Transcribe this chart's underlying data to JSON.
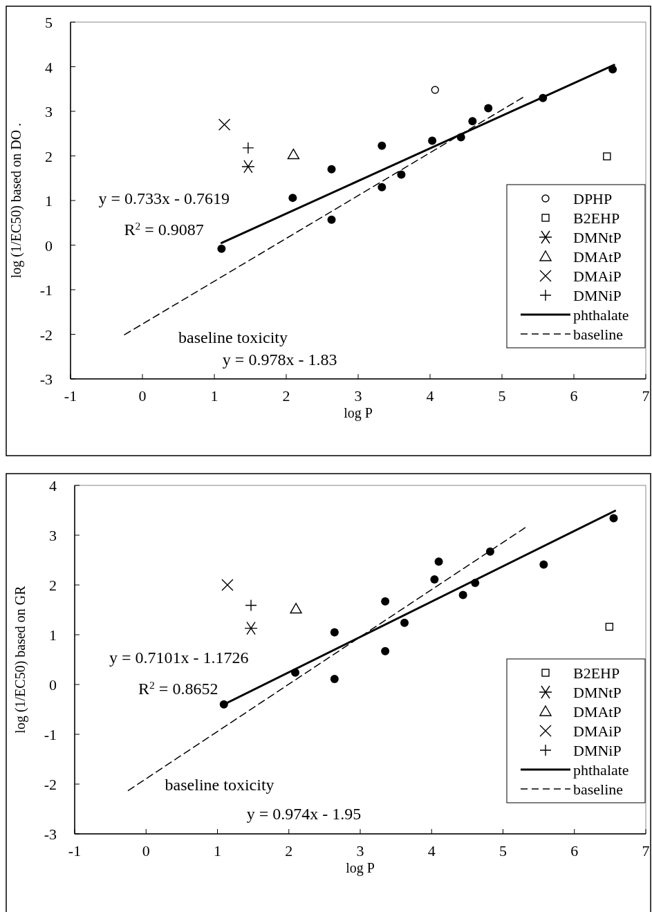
{
  "chart_data": [
    {
      "type": "scatter",
      "xlabel": "log P",
      "ylabel": "log (1/EC50) based on DO .",
      "xlim": [
        -1,
        7
      ],
      "xticks": [
        -1,
        0,
        1,
        2,
        3,
        4,
        5,
        6,
        7
      ],
      "ylim": [
        -3,
        5
      ],
      "yticks": [
        -3,
        -2,
        -1,
        0,
        1,
        2,
        3,
        4,
        5
      ],
      "grid": false,
      "legend": "right",
      "annotations": [
        "y = 0.733x - 0.7619",
        "R$^{2}$ = 0.9087",
        "baseline toxicity",
        "y = 0.978x - 1.83"
      ],
      "series": [
        {
          "color": "#000000",
          "marker": "circle",
          "x": [
            1.1,
            2.09,
            2.63,
            2.63,
            3.33,
            3.33,
            3.6,
            4.03,
            4.43,
            4.59,
            4.81,
            5.57,
            6.54
          ],
          "values": [
            -0.08,
            1.06,
            1.7,
            0.57,
            2.23,
            1.3,
            1.58,
            2.34,
            2.42,
            2.78,
            3.07,
            3.3,
            3.94
          ]
        },
        {
          "name": "DPHP",
          "color": "#000000",
          "marker": "circle-open",
          "x": [
            4.07
          ],
          "values": [
            3.48
          ]
        },
        {
          "name": "B2EHP",
          "color": "#000000",
          "marker": "square",
          "x": [
            6.46
          ],
          "values": [
            1.99
          ]
        },
        {
          "name": "DMNtP",
          "color": "#000000",
          "marker": "cross",
          "x": [
            1.47
          ],
          "values": [
            1.76
          ]
        },
        {
          "name": "DMAtP",
          "color": "#000000",
          "marker": "triangle",
          "x": [
            2.1
          ],
          "values": [
            2.03
          ]
        },
        {
          "name": "DMAiP",
          "color": "#000000",
          "marker": "x",
          "x": [
            1.14
          ],
          "values": [
            2.7
          ]
        },
        {
          "name": "DMNiP",
          "color": "#000000",
          "marker": "plus",
          "x": [
            1.47
          ],
          "values": [
            2.18
          ]
        },
        {
          "name": "phthalate",
          "type": "line",
          "color": "#000000",
          "line_style": "solid",
          "x": [
            1.1,
            6.56
          ],
          "values": [
            0.05,
            4.04
          ]
        },
        {
          "name": "baseline",
          "type": "line",
          "color": "#000000",
          "line_style": "dashed",
          "x": [
            -0.25,
            5.29
          ],
          "values": [
            -2.01,
            3.31
          ]
        }
      ]
    },
    {
      "type": "scatter",
      "xlabel": "log P",
      "ylabel": "log (1/EC50) based on GR",
      "xlim": [
        -1,
        7
      ],
      "xticks": [
        -1,
        0,
        1,
        2,
        3,
        4,
        5,
        6,
        7
      ],
      "ylim": [
        -3,
        4
      ],
      "yticks": [
        -3,
        -2,
        -1,
        0,
        1,
        2,
        3,
        4
      ],
      "grid": false,
      "legend": "right",
      "annotations": [
        "y = 0.7101x - 1.1726",
        "R$^{2}$ = 0.8652",
        "baseline toxicity",
        "y = 0.974x - 1.95"
      ],
      "series": [
        {
          "color": "#000000",
          "marker": "circle",
          "x": [
            1.09,
            2.09,
            2.64,
            2.64,
            3.35,
            3.35,
            3.62,
            4.04,
            4.1,
            4.44,
            4.61,
            4.82,
            5.57,
            6.55
          ],
          "values": [
            -0.4,
            0.24,
            1.05,
            0.11,
            1.67,
            0.67,
            1.24,
            2.11,
            2.47,
            1.8,
            2.04,
            2.67,
            2.41,
            3.34
          ]
        },
        {
          "name": "B2EHP",
          "color": "#000000",
          "marker": "square",
          "x": [
            6.49
          ],
          "values": [
            1.16
          ]
        },
        {
          "name": "DMNtP",
          "color": "#000000",
          "marker": "cross",
          "x": [
            1.47
          ],
          "values": [
            1.13
          ]
        },
        {
          "name": "DMAtP",
          "color": "#000000",
          "marker": "triangle",
          "x": [
            2.1
          ],
          "values": [
            1.52
          ]
        },
        {
          "name": "DMAiP",
          "color": "#000000",
          "marker": "x",
          "x": [
            1.14
          ],
          "values": [
            2.0
          ]
        },
        {
          "name": "DMNiP",
          "color": "#000000",
          "marker": "plus",
          "x": [
            1.47
          ],
          "values": [
            1.59
          ]
        },
        {
          "name": "phthalate",
          "type": "line",
          "color": "#000000",
          "line_style": "solid",
          "x": [
            1.09,
            6.57
          ],
          "values": [
            -0.4,
            3.49
          ]
        },
        {
          "name": "baseline",
          "type": "line",
          "color": "#000000",
          "line_style": "dashed",
          "x": [
            -0.25,
            5.31
          ],
          "values": [
            -2.13,
            3.15
          ]
        }
      ]
    }
  ]
}
